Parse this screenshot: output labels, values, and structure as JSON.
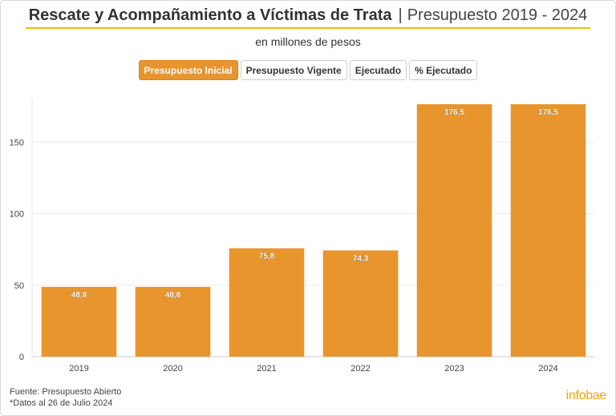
{
  "header": {
    "title": "Rescate y Acompañamiento a Víctimas de Trata",
    "separator": "|",
    "period": "Presupuesto 2019 - 2024",
    "subtitle": "en millones de pesos"
  },
  "buttons": [
    {
      "label": "Presupuesto Inicial",
      "active": true
    },
    {
      "label": "Presupuesto Vigente",
      "active": false
    },
    {
      "label": "Ejecutado",
      "active": false
    },
    {
      "label": "% Ejecutado",
      "active": false
    }
  ],
  "chart_data": {
    "type": "bar",
    "categories": [
      "2019",
      "2020",
      "2021",
      "2022",
      "2023",
      "2024"
    ],
    "values": [
      48.8,
      48.8,
      75.8,
      74.3,
      176.5,
      176.5
    ],
    "value_labels": [
      "48,8",
      "48,8",
      "75,8",
      "74,3",
      "176,5",
      "176,5"
    ],
    "yticks": [
      0,
      50,
      100,
      150
    ],
    "ylim": [
      0,
      181
    ],
    "grid": true,
    "bar_color": "#e8952e"
  },
  "footer": {
    "source": "Fuente: Presupuesto Abierto",
    "note": "*Datos al 26 de Julio 2024"
  },
  "brand": {
    "logo_text": "infobae",
    "color": "#f0a500"
  }
}
